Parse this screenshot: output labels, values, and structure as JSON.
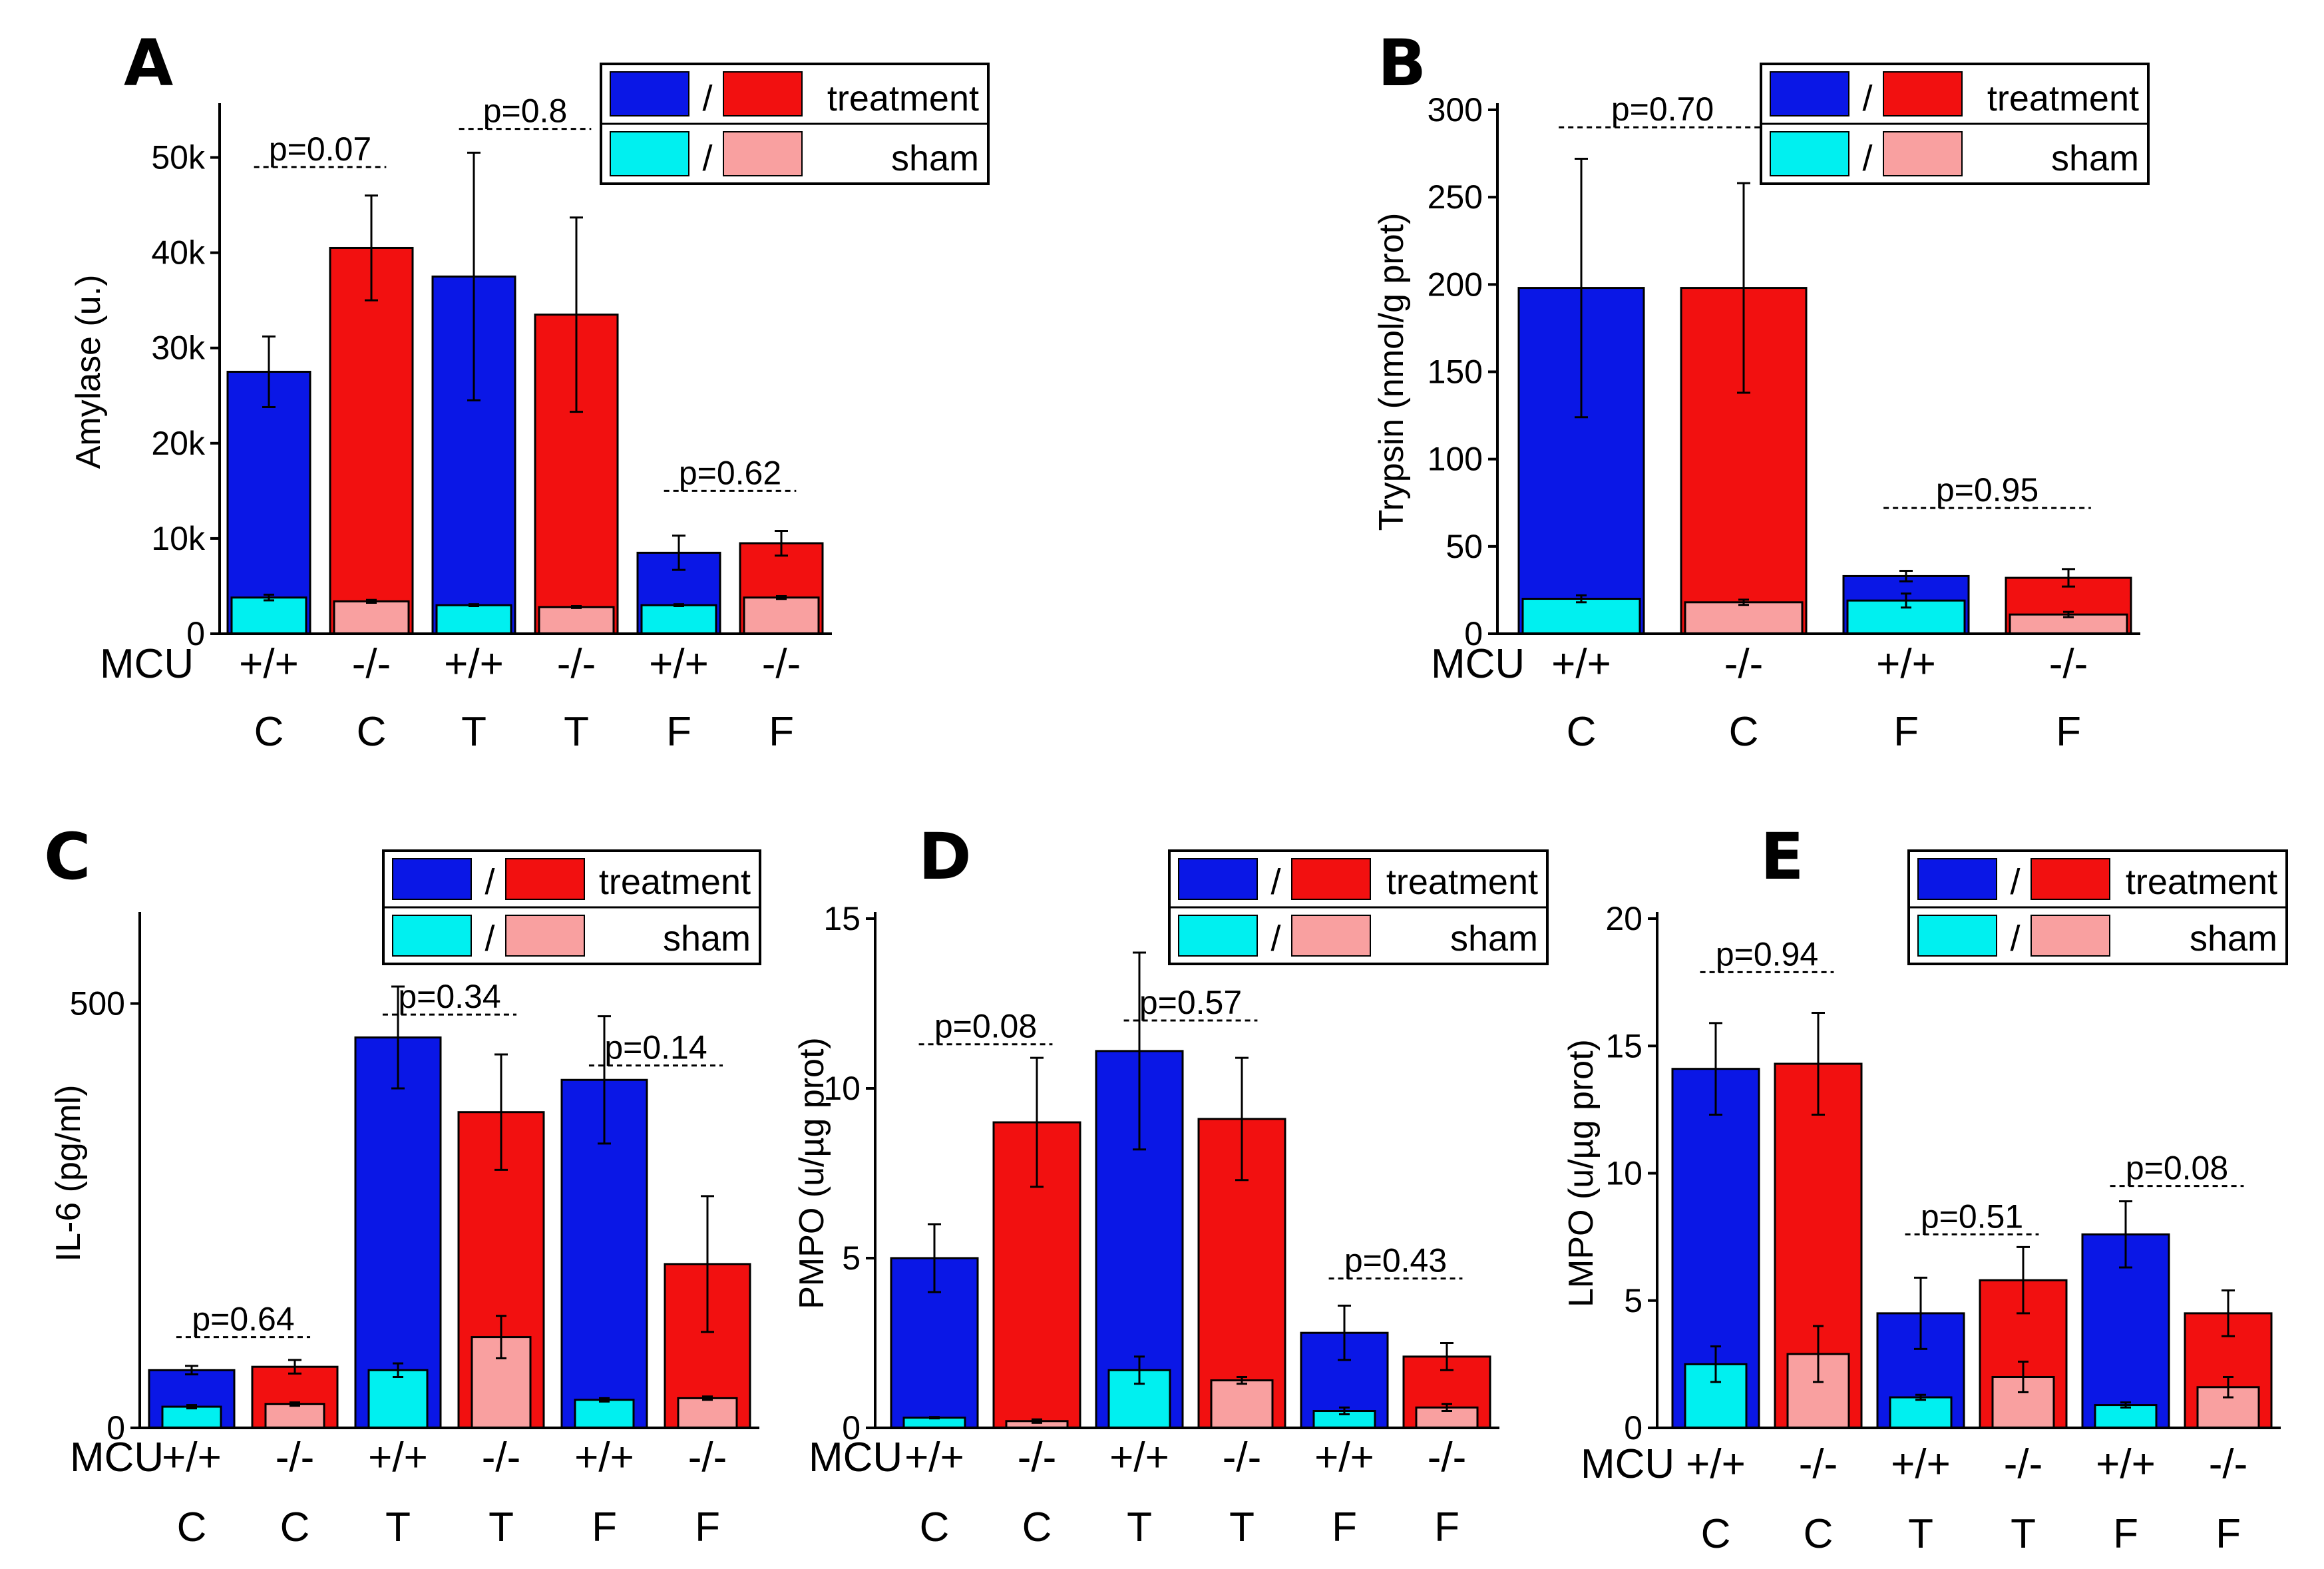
{
  "figure": {
    "colors": {
      "treatment_wt": "#0a17e6",
      "treatment_ko": "#f21010",
      "sham_wt": "#00f0f0",
      "sham_ko": "#f9a0a0",
      "axis": "#000000"
    },
    "legend": {
      "separator": "/",
      "treatment_label": "treatment",
      "sham_label": "sham"
    },
    "genotype_row_label": "MCU"
  },
  "chart_data": [
    {
      "id": "A",
      "type": "bar",
      "panel_label": "A",
      "ylabel": "Amylase (u.)",
      "ylim": [
        0,
        55000
      ],
      "yticks": [
        0,
        10000,
        20000,
        30000,
        40000,
        50000
      ],
      "ytick_labels": [
        "0",
        "10k",
        "20k",
        "30k",
        "40k",
        "50k"
      ],
      "categories": [
        "+/+ C",
        "-/- C",
        "+/+ T",
        "-/- T",
        "+/+ F",
        "-/- F"
      ],
      "genotypes": [
        "+/+",
        "-/-",
        "+/+",
        "-/-",
        "+/+",
        "-/-"
      ],
      "groups": [
        "C",
        "C",
        "T",
        "T",
        "F",
        "F"
      ],
      "series": [
        {
          "name": "treatment",
          "values": [
            27500,
            40500,
            37500,
            33500,
            8500,
            9500
          ],
          "errors": [
            3700,
            5500,
            13000,
            10200,
            1800,
            1300
          ]
        },
        {
          "name": "sham",
          "values": [
            3800,
            3400,
            3000,
            2800,
            3000,
            3800
          ],
          "errors": [
            300,
            150,
            100,
            100,
            100,
            150
          ]
        }
      ],
      "pvalues": [
        {
          "label": "p=0.07",
          "between": [
            0,
            1
          ],
          "y": 49000
        },
        {
          "label": "p=0.8",
          "between": [
            2,
            3
          ],
          "y": 53000
        },
        {
          "label": "p=0.62",
          "between": [
            4,
            5
          ],
          "y": 15000
        }
      ]
    },
    {
      "id": "B",
      "type": "bar",
      "panel_label": "B",
      "ylabel": "Trypsin (nmol/g prot)",
      "ylim": [
        0,
        300
      ],
      "yticks": [
        0,
        50,
        100,
        150,
        200,
        250,
        300
      ],
      "ytick_labels": [
        "0",
        "50",
        "100",
        "150",
        "200",
        "250",
        "300"
      ],
      "categories": [
        "+/+ C",
        "-/- C",
        "+/+ F",
        "-/- F"
      ],
      "genotypes": [
        "+/+",
        "-/-",
        "+/+",
        "-/-"
      ],
      "groups": [
        "C",
        "C",
        "F",
        "F"
      ],
      "series": [
        {
          "name": "treatment",
          "values": [
            198,
            198,
            33,
            32
          ],
          "errors": [
            74,
            60,
            3,
            5
          ]
        },
        {
          "name": "sham",
          "values": [
            20,
            18,
            19,
            11
          ],
          "errors": [
            2,
            1.5,
            4,
            1.5
          ]
        }
      ],
      "pvalues": [
        {
          "label": "p=0.70",
          "between": [
            0,
            1
          ],
          "y": 290
        },
        {
          "label": "p=0.95",
          "between": [
            2,
            3
          ],
          "y": 72
        }
      ]
    },
    {
      "id": "C",
      "type": "bar",
      "panel_label": "C",
      "ylabel": "IL-6 (pg/ml)",
      "ylim": [
        0,
        600
      ],
      "yticks": [
        0,
        500
      ],
      "ytick_labels": [
        "0",
        "500"
      ],
      "categories": [
        "+/+ C",
        "-/- C",
        "+/+ T",
        "-/- T",
        "+/+ F",
        "-/- F"
      ],
      "genotypes": [
        "+/+",
        "-/-",
        "+/+",
        "-/-",
        "+/+",
        "-/-"
      ],
      "groups": [
        "C",
        "C",
        "T",
        "T",
        "F",
        "F"
      ],
      "series": [
        {
          "name": "treatment",
          "values": [
            68,
            72,
            460,
            372,
            410,
            193
          ],
          "errors": [
            5,
            8,
            60,
            68,
            75,
            80
          ]
        },
        {
          "name": "sham",
          "values": [
            25,
            28,
            68,
            107,
            33,
            35
          ],
          "errors": [
            2,
            2,
            8,
            25,
            2,
            2
          ]
        }
      ],
      "pvalues": [
        {
          "label": "p=0.64",
          "between": [
            0,
            1
          ],
          "y": 107
        },
        {
          "label": "p=0.34",
          "between": [
            2,
            3
          ],
          "y": 487
        },
        {
          "label": "p=0.14",
          "between": [
            4,
            5
          ],
          "y": 427
        }
      ]
    },
    {
      "id": "D",
      "type": "bar",
      "panel_label": "D",
      "ylabel": "PMPO (u/µg prot)",
      "ylim": [
        0,
        15
      ],
      "yticks": [
        0,
        5,
        10,
        15
      ],
      "ytick_labels": [
        "0",
        "5",
        "10",
        "15"
      ],
      "categories": [
        "+/+ C",
        "-/- C",
        "+/+ T",
        "-/- T",
        "+/+ F",
        "-/- F"
      ],
      "genotypes": [
        "+/+",
        "-/-",
        "+/+",
        "-/-",
        "+/+",
        "-/-"
      ],
      "groups": [
        "C",
        "C",
        "T",
        "T",
        "F",
        "F"
      ],
      "series": [
        {
          "name": "treatment",
          "values": [
            5,
            9,
            11.1,
            9.1,
            2.8,
            2.1
          ],
          "errors": [
            1.0,
            1.9,
            2.9,
            1.8,
            0.8,
            0.4
          ]
        },
        {
          "name": "sham",
          "values": [
            0.3,
            0.2,
            1.7,
            1.4,
            0.5,
            0.6
          ],
          "errors": [
            0.02,
            0.05,
            0.4,
            0.1,
            0.1,
            0.1
          ]
        }
      ],
      "pvalues": [
        {
          "label": "p=0.08",
          "between": [
            0,
            1
          ],
          "y": 11.3
        },
        {
          "label": "p=0.57",
          "between": [
            2,
            3
          ],
          "y": 12.0
        },
        {
          "label": "p=0.43",
          "between": [
            4,
            5
          ],
          "y": 4.4
        }
      ]
    },
    {
      "id": "E",
      "type": "bar",
      "panel_label": "E",
      "ylabel": "LMPO (u/µg prot)",
      "ylim": [
        0,
        20
      ],
      "yticks": [
        0,
        5,
        10,
        15,
        20
      ],
      "ytick_labels": [
        "0",
        "5",
        "10",
        "15",
        "20"
      ],
      "categories": [
        "+/+ C",
        "-/- C",
        "+/+ T",
        "-/- T",
        "+/+ F",
        "-/- F"
      ],
      "genotypes": [
        "+/+",
        "-/-",
        "+/+",
        "-/-",
        "+/+",
        "-/-"
      ],
      "groups": [
        "C",
        "C",
        "T",
        "T",
        "F",
        "F"
      ],
      "series": [
        {
          "name": "treatment",
          "values": [
            14.1,
            14.3,
            4.5,
            5.8,
            7.6,
            4.5
          ],
          "errors": [
            1.8,
            2.0,
            1.4,
            1.3,
            1.3,
            0.9
          ]
        },
        {
          "name": "sham",
          "values": [
            2.5,
            2.9,
            1.2,
            2.0,
            0.9,
            1.6
          ],
          "errors": [
            0.7,
            1.1,
            0.1,
            0.6,
            0.1,
            0.4
          ]
        }
      ],
      "pvalues": [
        {
          "label": "p=0.94",
          "between": [
            0,
            1
          ],
          "y": 17.9
        },
        {
          "label": "p=0.51",
          "between": [
            2,
            3
          ],
          "y": 7.6
        },
        {
          "label": "p=0.08",
          "between": [
            4,
            5
          ],
          "y": 9.5
        }
      ]
    }
  ]
}
